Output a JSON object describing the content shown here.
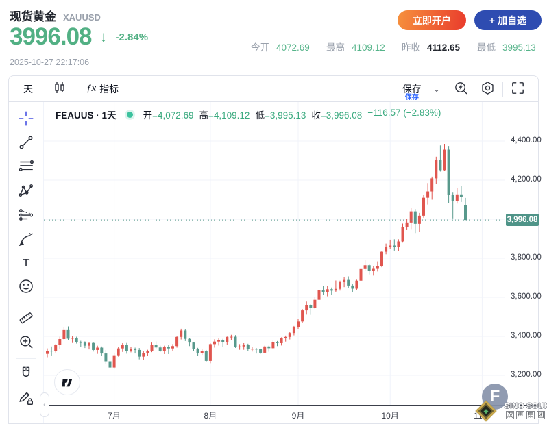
{
  "header": {
    "title": "现货黄金",
    "symbol": "XAUUSD",
    "price": "3996.08",
    "down_arrow": "↓",
    "change_pct": "-2.84%",
    "timestamp": "2025-10-27 22:17:06",
    "buttons": {
      "open_account": "立即开户",
      "add_watchlist": "+ 加自选"
    },
    "stats": [
      {
        "label": "今开",
        "value": "4072.69",
        "color": "green"
      },
      {
        "label": "最高",
        "value": "4109.12",
        "color": "green"
      },
      {
        "label": "昨收",
        "value": "4112.65",
        "color": "dark"
      },
      {
        "label": "最低",
        "value": "3995.13",
        "color": "green"
      }
    ]
  },
  "toolbar": {
    "interval_label": "天",
    "fx_glyph": "ƒx",
    "indicators_label": "指标",
    "save_label": "保存",
    "save_hint": "保存",
    "chevron": "⌄"
  },
  "sidebar": {
    "tools": [
      {
        "name": "crosshair",
        "active": true
      },
      {
        "name": "trend-line"
      },
      {
        "name": "fib-retracement"
      },
      {
        "name": "xabcd-pattern"
      },
      {
        "name": "forecast"
      },
      {
        "name": "brush"
      },
      {
        "name": "text-tool"
      },
      {
        "name": "emoji"
      },
      {
        "divider": true
      },
      {
        "name": "ruler"
      },
      {
        "name": "zoom-in"
      },
      {
        "divider": true
      },
      {
        "name": "magnet"
      },
      {
        "name": "draw-lock"
      }
    ]
  },
  "legend": {
    "symbol": "FEAUUS",
    "separator": "·",
    "interval": "1天",
    "items": [
      {
        "label": "开",
        "value": "=4,072.69"
      },
      {
        "label": "高",
        "value": "=4,109.12"
      },
      {
        "label": "低",
        "value": "=3,995.13"
      },
      {
        "label": "收",
        "value": "=3,996.08"
      }
    ],
    "change": "−116.57 (−2.83%)"
  },
  "chart_data": {
    "type": "candlestick",
    "symbol": "FEAUUS",
    "interval": "1天",
    "convention": "red=up, green=down (CN)",
    "price_line": 3996.08,
    "y_axis": {
      "range_top": 4400,
      "range_step": 200,
      "labels": [
        {
          "price": 4400,
          "text": "4,400.00"
        },
        {
          "price": 4200,
          "text": "4,200.00"
        },
        {
          "price": 3800,
          "text": "3,800.00"
        },
        {
          "price": 3600,
          "text": "3,600.00"
        },
        {
          "price": 3400,
          "text": "3,400.00"
        },
        {
          "price": 3200,
          "text": "3,200.00"
        }
      ],
      "badge": {
        "price": 3996.08,
        "text": "3,996.08"
      },
      "grid_prices": [
        4400,
        4200,
        4000,
        3800,
        3600,
        3400,
        3200
      ]
    },
    "x_axis": {
      "ticks": [
        {
          "label": "7月",
          "index": 16
        },
        {
          "label": "8月",
          "index": 39
        },
        {
          "label": "9月",
          "index": 60
        },
        {
          "label": "10月",
          "index": 82
        },
        {
          "label": "11月",
          "index": 104
        }
      ]
    },
    "candles": [
      [
        3310,
        3338,
        3293,
        3326
      ],
      [
        3326,
        3348,
        3302,
        3323
      ],
      [
        3323,
        3360,
        3317,
        3355
      ],
      [
        3355,
        3398,
        3337,
        3386
      ],
      [
        3386,
        3446,
        3382,
        3432
      ],
      [
        3432,
        3451,
        3381,
        3388
      ],
      [
        3388,
        3403,
        3366,
        3392
      ],
      [
        3392,
        3398,
        3363,
        3370
      ],
      [
        3370,
        3377,
        3344,
        3368
      ],
      [
        3368,
        3374,
        3340,
        3352
      ],
      [
        3352,
        3368,
        3333,
        3366
      ],
      [
        3366,
        3370,
        3322,
        3330
      ],
      [
        3330,
        3352,
        3310,
        3342
      ],
      [
        3342,
        3348,
        3300,
        3312
      ],
      [
        3312,
        3330,
        3258,
        3272
      ],
      [
        3272,
        3290,
        3222,
        3240
      ],
      [
        3240,
        3312,
        3232,
        3303
      ],
      [
        3303,
        3345,
        3296,
        3338
      ],
      [
        3338,
        3365,
        3320,
        3357
      ],
      [
        3357,
        3366,
        3311,
        3326
      ],
      [
        3326,
        3345,
        3318,
        3336
      ],
      [
        3336,
        3342,
        3312,
        3330
      ],
      [
        3330,
        3340,
        3282,
        3296
      ],
      [
        3296,
        3325,
        3278,
        3313
      ],
      [
        3313,
        3331,
        3301,
        3324
      ],
      [
        3324,
        3368,
        3319,
        3356
      ],
      [
        3356,
        3374,
        3337,
        3343
      ],
      [
        3343,
        3352,
        3320,
        3325
      ],
      [
        3325,
        3352,
        3309,
        3347
      ],
      [
        3347,
        3356,
        3309,
        3338
      ],
      [
        3338,
        3360,
        3325,
        3350
      ],
      [
        3350,
        3401,
        3342,
        3397
      ],
      [
        3397,
        3439,
        3384,
        3430
      ],
      [
        3430,
        3438,
        3376,
        3387
      ],
      [
        3387,
        3393,
        3350,
        3368
      ],
      [
        3368,
        3372,
        3323,
        3336
      ],
      [
        3336,
        3341,
        3301,
        3314
      ],
      [
        3314,
        3334,
        3305,
        3326
      ],
      [
        3326,
        3330,
        3268,
        3274
      ],
      [
        3274,
        3364,
        3262,
        3360
      ],
      [
        3360,
        3385,
        3342,
        3373
      ],
      [
        3373,
        3389,
        3353,
        3381
      ],
      [
        3381,
        3387,
        3345,
        3369
      ],
      [
        3369,
        3399,
        3358,
        3397
      ],
      [
        3397,
        3408,
        3380,
        3398
      ],
      [
        3398,
        3406,
        3341,
        3344
      ],
      [
        3344,
        3360,
        3331,
        3348
      ],
      [
        3348,
        3365,
        3331,
        3357
      ],
      [
        3357,
        3362,
        3323,
        3335
      ],
      [
        3335,
        3345,
        3322,
        3336
      ],
      [
        3336,
        3340,
        3312,
        3334
      ],
      [
        3334,
        3337,
        3311,
        3316
      ],
      [
        3316,
        3352,
        3313,
        3348
      ],
      [
        3348,
        3352,
        3321,
        3339
      ],
      [
        3339,
        3378,
        3334,
        3371
      ],
      [
        3371,
        3376,
        3350,
        3365
      ],
      [
        3365,
        3395,
        3353,
        3393
      ],
      [
        3393,
        3404,
        3373,
        3397
      ],
      [
        3397,
        3423,
        3384,
        3417
      ],
      [
        3417,
        3453,
        3405,
        3448
      ],
      [
        3448,
        3489,
        3436,
        3476
      ],
      [
        3476,
        3540,
        3470,
        3533
      ],
      [
        3533,
        3578,
        3511,
        3559
      ],
      [
        3559,
        3565,
        3510,
        3546
      ],
      [
        3546,
        3600,
        3540,
        3587
      ],
      [
        3587,
        3646,
        3580,
        3636
      ],
      [
        3636,
        3659,
        3614,
        3626
      ],
      [
        3626,
        3657,
        3605,
        3641
      ],
      [
        3641,
        3650,
        3613,
        3634
      ],
      [
        3634,
        3686,
        3626,
        3643
      ],
      [
        3643,
        3685,
        3634,
        3679
      ],
      [
        3679,
        3703,
        3652,
        3689
      ],
      [
        3689,
        3707,
        3646,
        3660
      ],
      [
        3660,
        3668,
        3627,
        3644
      ],
      [
        3644,
        3690,
        3636,
        3685
      ],
      [
        3685,
        3759,
        3677,
        3748
      ],
      [
        3748,
        3791,
        3736,
        3764
      ],
      [
        3764,
        3772,
        3717,
        3736
      ],
      [
        3736,
        3760,
        3711,
        3749
      ],
      [
        3749,
        3784,
        3732,
        3760
      ],
      [
        3760,
        3835,
        3754,
        3833
      ],
      [
        3833,
        3875,
        3820,
        3858
      ],
      [
        3858,
        3895,
        3846,
        3865
      ],
      [
        3865,
        3897,
        3839,
        3857
      ],
      [
        3857,
        3897,
        3837,
        3886
      ],
      [
        3886,
        3977,
        3880,
        3960
      ],
      [
        3960,
        4000,
        3944,
        3983
      ],
      [
        3983,
        4059,
        3946,
        4040
      ],
      [
        4040,
        4052,
        3929,
        3976
      ],
      [
        3976,
        4032,
        3936,
        4018
      ],
      [
        4018,
        4124,
        4008,
        4110
      ],
      [
        4110,
        4185,
        4075,
        4142
      ],
      [
        4142,
        4218,
        4100,
        4209
      ],
      [
        4209,
        4320,
        4180,
        4304
      ],
      [
        4304,
        4378,
        4244,
        4251
      ],
      [
        4251,
        4386,
        4248,
        4356
      ],
      [
        4356,
        4375,
        4082,
        4125
      ],
      [
        4125,
        4136,
        4004,
        4092
      ],
      [
        4092,
        4160,
        4080,
        4127
      ],
      [
        4127,
        4170,
        4088,
        4113
      ],
      [
        4072.69,
        4109.12,
        3995.13,
        3996.08
      ]
    ]
  },
  "watermark": {
    "f_letter": "F",
    "line1": "SINO SOUND",
    "line2": [
      "汉",
      "声",
      "集",
      "团"
    ]
  },
  "colors": {
    "candle_up": "#e0564f",
    "candle_down": "#58998c",
    "price_line": "#58998c",
    "badge_bg": "#4f9488",
    "grid": "#f0f3fa",
    "accent_green": "#56b48a",
    "active_tool": "#4a55e2"
  }
}
